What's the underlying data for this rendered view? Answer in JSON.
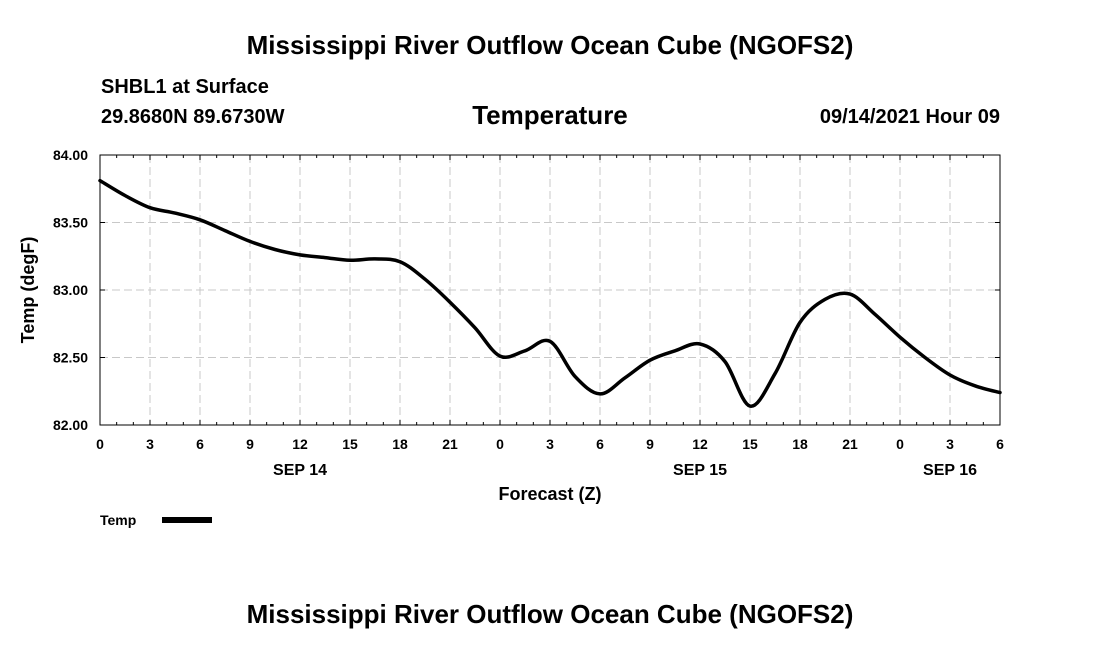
{
  "header": {
    "title_top": "Mississippi River Outflow Ocean Cube (NGOFS2)",
    "title_bottom": "Mississippi River Outflow Ocean Cube (NGOFS2)",
    "station": "SHBL1 at Surface",
    "coords": "29.8680N  89.6730W",
    "run_time": "09/14/2021 Hour 09"
  },
  "chart_data": {
    "type": "line",
    "title": "Temperature",
    "xlabel": "Forecast (Z)",
    "ylabel": "Temp (degF)",
    "ylim": [
      82.0,
      84.0
    ],
    "xlim": [
      0,
      54
    ],
    "y_ticks": [
      "82.00",
      "82.50",
      "83.00",
      "83.50",
      "84.00"
    ],
    "x_ticks": [
      {
        "t": 0,
        "label": "0"
      },
      {
        "t": 3,
        "label": "3"
      },
      {
        "t": 6,
        "label": "6"
      },
      {
        "t": 9,
        "label": "9"
      },
      {
        "t": 12,
        "label": "12"
      },
      {
        "t": 15,
        "label": "15"
      },
      {
        "t": 18,
        "label": "18"
      },
      {
        "t": 21,
        "label": "21"
      },
      {
        "t": 24,
        "label": "0"
      },
      {
        "t": 27,
        "label": "3"
      },
      {
        "t": 30,
        "label": "6"
      },
      {
        "t": 33,
        "label": "9"
      },
      {
        "t": 36,
        "label": "12"
      },
      {
        "t": 39,
        "label": "15"
      },
      {
        "t": 42,
        "label": "18"
      },
      {
        "t": 45,
        "label": "21"
      },
      {
        "t": 48,
        "label": "0"
      },
      {
        "t": 51,
        "label": "3"
      },
      {
        "t": 54,
        "label": "6"
      }
    ],
    "date_labels": [
      {
        "t": 12,
        "label": "SEP 14"
      },
      {
        "t": 36,
        "label": "SEP 15"
      },
      {
        "t": 51,
        "label": "SEP 16"
      }
    ],
    "grid": true,
    "legend": {
      "label": "Temp",
      "placement": "bottom-left"
    },
    "series": [
      {
        "name": "Temp",
        "color": "#000000",
        "x": [
          0,
          1.5,
          3,
          4.5,
          6,
          7.5,
          9,
          10.5,
          12,
          13.5,
          15,
          16.5,
          18,
          19.5,
          21,
          22.5,
          24,
          25.5,
          27,
          28.5,
          30,
          31.5,
          33,
          34.5,
          36,
          37.5,
          39,
          40.5,
          42,
          43.5,
          45,
          46.5,
          48,
          49.5,
          51,
          52.5,
          54
        ],
        "values": [
          83.81,
          83.7,
          83.61,
          83.57,
          83.52,
          83.44,
          83.36,
          83.3,
          83.26,
          83.24,
          83.22,
          83.23,
          83.21,
          83.08,
          82.91,
          82.72,
          82.51,
          82.55,
          82.62,
          82.36,
          82.23,
          82.35,
          82.48,
          82.55,
          82.6,
          82.47,
          82.14,
          82.38,
          82.76,
          82.93,
          82.97,
          82.82,
          82.65,
          82.5,
          82.37,
          82.29,
          82.24
        ]
      }
    ]
  }
}
